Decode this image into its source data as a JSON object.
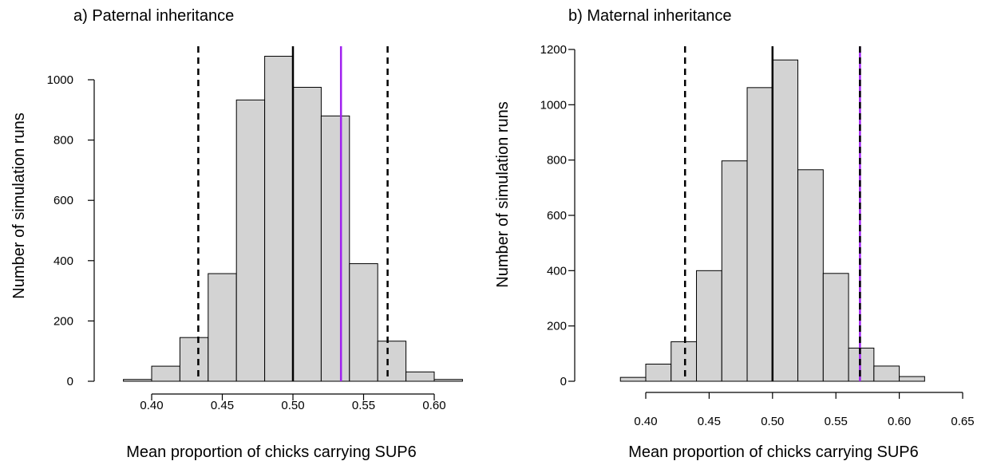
{
  "chart_data": [
    {
      "type": "bar",
      "title": "a) Paternal inheritance",
      "xlabel": "Mean proportion of chicks carrying SUP6",
      "ylabel": "Number of simulation runs",
      "xlim": [
        0.37,
        0.625
      ],
      "ylim": [
        0,
        1100
      ],
      "xticks": [
        "0.40",
        "0.45",
        "0.50",
        "0.55",
        "0.60"
      ],
      "yticks": [
        "0",
        "200",
        "400",
        "600",
        "800",
        "1000"
      ],
      "bin_edges": [
        0.38,
        0.39,
        0.4,
        0.41,
        0.42,
        0.43,
        0.44,
        0.45,
        0.46,
        0.47,
        0.48,
        0.49,
        0.5,
        0.51,
        0.52,
        0.53,
        0.54,
        0.55,
        0.56,
        0.57,
        0.58,
        0.59,
        0.6,
        0.61,
        0.62
      ],
      "bins": [
        {
          "from": 0.38,
          "to": 0.39,
          "count": 6
        },
        {
          "from": 0.39,
          "to": 0.4,
          "count": 6
        },
        {
          "from": 0.4,
          "to": 0.41,
          "count": 50
        },
        {
          "from": 0.41,
          "to": 0.42,
          "count": 50
        },
        {
          "from": 0.42,
          "to": 0.43,
          "count": 145
        },
        {
          "from": 0.43,
          "to": 0.44,
          "count": 145
        },
        {
          "from": 0.44,
          "to": 0.45,
          "count": 357
        },
        {
          "from": 0.45,
          "to": 0.46,
          "count": 357
        },
        {
          "from": 0.46,
          "to": 0.47,
          "count": 933
        },
        {
          "from": 0.47,
          "to": 0.48,
          "count": 933
        },
        {
          "from": 0.48,
          "to": 0.49,
          "count": 1078
        },
        {
          "from": 0.49,
          "to": 0.5,
          "count": 1078
        },
        {
          "from": 0.5,
          "to": 0.51,
          "count": 975
        },
        {
          "from": 0.51,
          "to": 0.52,
          "count": 975
        },
        {
          "from": 0.52,
          "to": 0.53,
          "count": 880
        },
        {
          "from": 0.53,
          "to": 0.54,
          "count": 880
        },
        {
          "from": 0.54,
          "to": 0.55,
          "count": 390
        },
        {
          "from": 0.55,
          "to": 0.56,
          "count": 390
        },
        {
          "from": 0.56,
          "to": 0.57,
          "count": 133
        },
        {
          "from": 0.57,
          "to": 0.58,
          "count": 133
        },
        {
          "from": 0.58,
          "to": 0.59,
          "count": 31
        },
        {
          "from": 0.59,
          "to": 0.6,
          "count": 31
        },
        {
          "from": 0.6,
          "to": 0.61,
          "count": 6
        },
        {
          "from": 0.61,
          "to": 0.62,
          "count": 6
        }
      ],
      "vlines": [
        {
          "x": 0.433,
          "style": "dashed",
          "color": "#000000"
        },
        {
          "x": 0.5,
          "style": "solid",
          "color": "#000000"
        },
        {
          "x": 0.567,
          "style": "dashed",
          "color": "#000000"
        },
        {
          "x": 0.534,
          "style": "solid",
          "color": "#a020f0"
        }
      ]
    },
    {
      "type": "bar",
      "title": "b) Maternal inheritance",
      "xlabel": "Mean proportion of chicks carrying SUP6",
      "ylabel": "Number of simulation runs",
      "xlim": [
        0.37,
        0.66
      ],
      "ylim": [
        0,
        1200
      ],
      "xticks": [
        "0.40",
        "0.45",
        "0.50",
        "0.55",
        "0.60",
        "0.65"
      ],
      "yticks": [
        "0",
        "200",
        "400",
        "600",
        "800",
        "1000",
        "1200"
      ],
      "bins": [
        {
          "from": 0.38,
          "to": 0.4,
          "count": 14
        },
        {
          "from": 0.4,
          "to": 0.42,
          "count": 62
        },
        {
          "from": 0.42,
          "to": 0.44,
          "count": 143
        },
        {
          "from": 0.44,
          "to": 0.46,
          "count": 400
        },
        {
          "from": 0.46,
          "to": 0.48,
          "count": 797
        },
        {
          "from": 0.48,
          "to": 0.5,
          "count": 1062
        },
        {
          "from": 0.5,
          "to": 0.52,
          "count": 1162
        },
        {
          "from": 0.52,
          "to": 0.54,
          "count": 765
        },
        {
          "from": 0.54,
          "to": 0.56,
          "count": 390
        },
        {
          "from": 0.56,
          "to": 0.58,
          "count": 120
        },
        {
          "from": 0.58,
          "to": 0.6,
          "count": 55
        },
        {
          "from": 0.6,
          "to": 0.62,
          "count": 17
        }
      ],
      "vlines": [
        {
          "x": 0.431,
          "style": "dashed",
          "color": "#000000"
        },
        {
          "x": 0.5,
          "style": "solid",
          "color": "#000000"
        },
        {
          "x": 0.569,
          "style": "dashed-purple",
          "color": "#a020f0"
        }
      ]
    }
  ]
}
